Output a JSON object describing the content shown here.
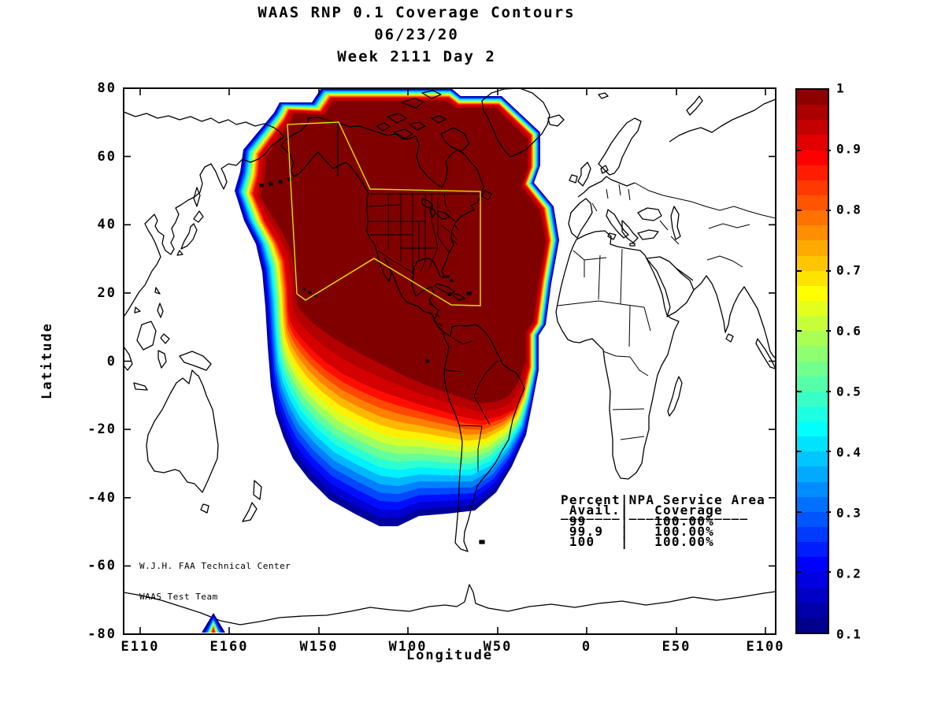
{
  "figure": {
    "title_lines": [
      "WAAS RNP 0.1 Coverage Contours",
      "06/23/20",
      "Week 2111 Day 2"
    ],
    "xlabel": "Longitude",
    "ylabel": "Latitude"
  },
  "axes": {
    "x_tick_labels": [
      "E110",
      "E160",
      "W150",
      "W100",
      "W50",
      "0",
      "E50",
      "E100"
    ],
    "y_tick_labels": [
      "80",
      "60",
      "40",
      "20",
      "0",
      "-20",
      "-40",
      "-60",
      "-80"
    ]
  },
  "colorbar": {
    "min": 0.1,
    "max": 1,
    "tick_labels": [
      "1",
      "0.9",
      "0.8",
      "0.7",
      "0.6",
      "0.5",
      "0.4",
      "0.3",
      "0.2",
      "0.1"
    ]
  },
  "stats_table": {
    "lines": [
      "Percent|NPA Service Area",
      " Avail.|   Coverage",
      "_______|______________",
      " 99    |   100.00%",
      " 99.9  |   100.00%",
      " 100   |   100.00%"
    ]
  },
  "credit_lines": [
    "W.J.H. FAA Technical Center",
    "WAAS Test Team"
  ],
  "service_area_color": "#e0e000",
  "chart_data": {
    "type": "filled-contour-map",
    "title": "WAAS RNP 0.1 Coverage Contours",
    "date": "06/23/20",
    "week_day": "Week 2111 Day 2",
    "xlabel": "Longitude",
    "ylabel": "Latitude",
    "x_ticks": [
      "E110",
      "E160",
      "W150",
      "W100",
      "W50",
      "0",
      "E50",
      "E100"
    ],
    "y_ticks": [
      80,
      60,
      40,
      20,
      0,
      -20,
      -40,
      -60,
      -80
    ],
    "colormap": "jet",
    "colorbar_range": [
      0.1,
      1.0
    ],
    "colorbar_ticks": [
      1,
      0.9,
      0.8,
      0.7,
      0.6,
      0.5,
      0.4,
      0.3,
      0.2,
      0.1
    ],
    "contour_levels": [
      0.1,
      0.15,
      0.2,
      0.25,
      0.3,
      0.35,
      0.4,
      0.45,
      0.5,
      0.55,
      0.6,
      0.65,
      0.7,
      0.75,
      0.8,
      0.85,
      0.9,
      0.95,
      1.0
    ],
    "description": "Coverage availability contours: dark red core (~1.0) covers Alaska, Canada, CONUS, Mexico and the Caribbean; values fall off through red/orange/yellow/cyan/blue toward the South Pacific and southern South America; small contour anomaly near E165 at -80 latitude; yellow outline marks the NPA service area (Alaska + CONUS region).",
    "table": {
      "columns": [
        "Percent Avail.",
        "NPA Service Area Coverage"
      ],
      "rows": [
        [
          "99",
          "100.00%"
        ],
        [
          "99.9",
          "100.00%"
        ],
        [
          "100",
          "100.00%"
        ]
      ]
    }
  }
}
